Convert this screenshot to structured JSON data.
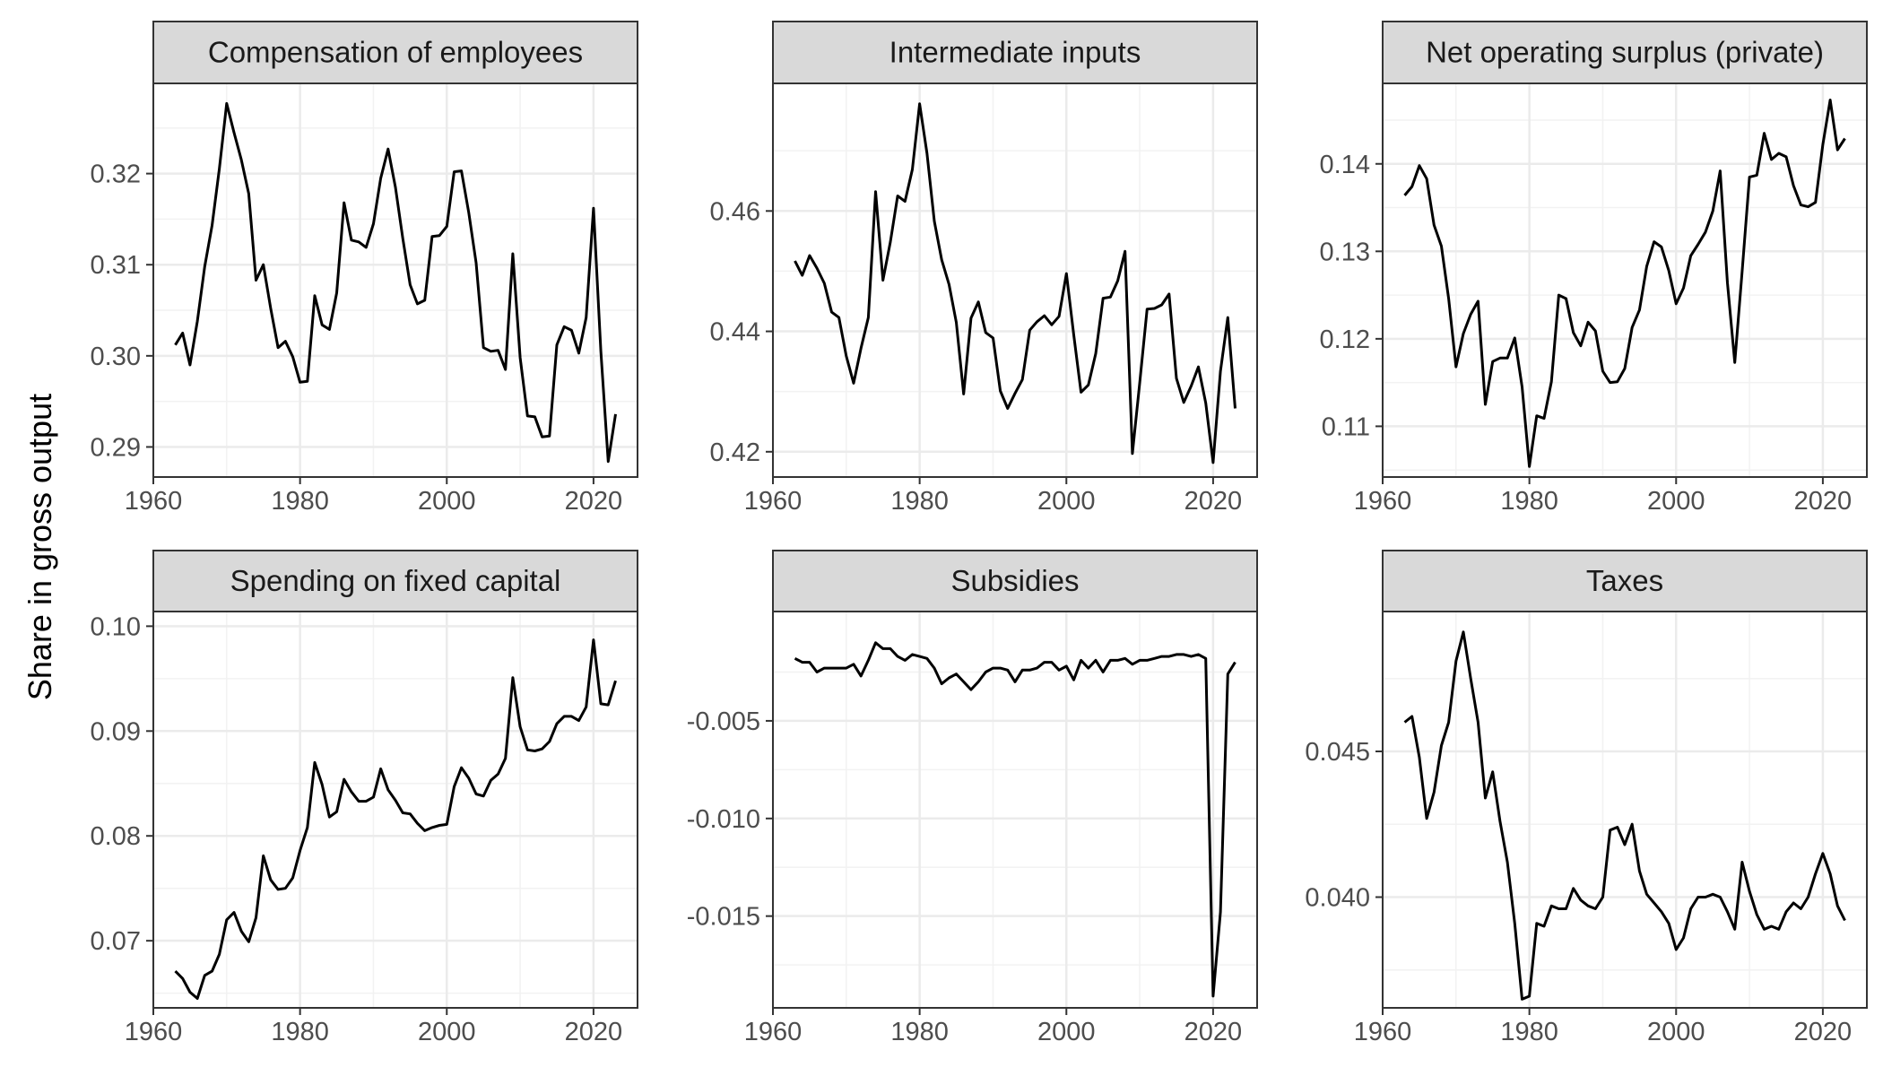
{
  "chart_data": {
    "type": "line",
    "ylabel": "Share in gross output",
    "xlabel": "",
    "grid": true,
    "line_color": "#000000",
    "strip_color": "#d9d9d9",
    "x": [
      1963,
      1964,
      1965,
      1966,
      1967,
      1968,
      1969,
      1970,
      1971,
      1972,
      1973,
      1974,
      1975,
      1976,
      1977,
      1978,
      1979,
      1980,
      1981,
      1982,
      1983,
      1984,
      1985,
      1986,
      1987,
      1988,
      1989,
      1990,
      1991,
      1992,
      1993,
      1994,
      1995,
      1996,
      1997,
      1998,
      1999,
      2000,
      2001,
      2002,
      2003,
      2004,
      2005,
      2006,
      2007,
      2008,
      2009,
      2010,
      2011,
      2012,
      2013,
      2014,
      2015,
      2016,
      2017,
      2018,
      2019,
      2020,
      2021,
      2022,
      2023
    ],
    "panels": [
      {
        "title": "Compensation of employees",
        "xlim": [
          1960,
          2026
        ],
        "ylim": [
          0.2867,
          0.3299
        ],
        "xticks": [
          "1960",
          "1980",
          "2000",
          "2020"
        ],
        "yticks": [
          "0.29",
          "0.30",
          "0.31",
          "0.32"
        ],
        "values": [
          0.3012,
          0.3025,
          0.299,
          0.3038,
          0.3098,
          0.3143,
          0.3205,
          0.3277,
          0.3245,
          0.3215,
          0.3178,
          0.3083,
          0.31,
          0.3052,
          0.3009,
          0.3016,
          0.2999,
          0.2971,
          0.2972,
          0.3066,
          0.3034,
          0.3029,
          0.3069,
          0.3168,
          0.3127,
          0.3125,
          0.3119,
          0.3145,
          0.3195,
          0.3227,
          0.3185,
          0.3129,
          0.3078,
          0.3057,
          0.3061,
          0.3131,
          0.3132,
          0.3142,
          0.3202,
          0.3203,
          0.3157,
          0.3102,
          0.3009,
          0.3005,
          0.3006,
          0.2985,
          0.3112,
          0.2998,
          0.2934,
          0.2933,
          0.2911,
          0.2912,
          0.3012,
          0.3032,
          0.3028,
          0.3003,
          0.3042,
          0.3162,
          0.3005,
          0.2884,
          0.2936
        ]
      },
      {
        "title": "Intermediate inputs",
        "xlim": [
          1960,
          2026
        ],
        "ylim": [
          0.4158,
          0.4812
        ],
        "xticks": [
          "1960",
          "1980",
          "2000",
          "2020"
        ],
        "yticks": [
          "0.42",
          "0.44",
          "0.46"
        ],
        "values": [
          0.4517,
          0.4493,
          0.4526,
          0.4505,
          0.448,
          0.4432,
          0.4423,
          0.4359,
          0.4314,
          0.4372,
          0.4423,
          0.4632,
          0.4485,
          0.4548,
          0.4625,
          0.4616,
          0.4669,
          0.4778,
          0.4696,
          0.4583,
          0.4519,
          0.4478,
          0.4415,
          0.4296,
          0.4422,
          0.4449,
          0.4398,
          0.4389,
          0.4301,
          0.4272,
          0.4297,
          0.432,
          0.4402,
          0.4416,
          0.4426,
          0.4411,
          0.4425,
          0.4496,
          0.4394,
          0.4299,
          0.4311,
          0.4363,
          0.4455,
          0.4457,
          0.4484,
          0.4533,
          0.4197,
          0.4315,
          0.4437,
          0.4438,
          0.4444,
          0.4462,
          0.4322,
          0.4282,
          0.4309,
          0.4341,
          0.4281,
          0.4182,
          0.4334,
          0.4423,
          0.4272
        ]
      },
      {
        "title": "Net operating surplus (private)",
        "xlim": [
          1960,
          2026
        ],
        "ylim": [
          0.1042,
          0.1492
        ],
        "xticks": [
          "1960",
          "1980",
          "2000",
          "2020"
        ],
        "yticks": [
          "0.11",
          "0.12",
          "0.13",
          "0.14"
        ],
        "values": [
          0.1364,
          0.1374,
          0.1398,
          0.1383,
          0.133,
          0.1306,
          0.1246,
          0.1168,
          0.1206,
          0.1228,
          0.1243,
          0.1125,
          0.1174,
          0.1178,
          0.1178,
          0.1201,
          0.1145,
          0.1054,
          0.1112,
          0.1109,
          0.1151,
          0.125,
          0.1246,
          0.1207,
          0.1192,
          0.1219,
          0.1209,
          0.1163,
          0.115,
          0.1151,
          0.1166,
          0.1213,
          0.1233,
          0.1283,
          0.1311,
          0.1305,
          0.1278,
          0.124,
          0.1258,
          0.1295,
          0.1308,
          0.1322,
          0.1346,
          0.1392,
          0.1264,
          0.1173,
          0.1277,
          0.1385,
          0.1387,
          0.1435,
          0.1405,
          0.1412,
          0.1408,
          0.1375,
          0.1353,
          0.1351,
          0.1356,
          0.1422,
          0.1473,
          0.1416,
          0.1429
        ]
      },
      {
        "title": "Spending on fixed capital",
        "xlim": [
          1960,
          2026
        ],
        "ylim": [
          0.0636,
          0.1014
        ],
        "xticks": [
          "1960",
          "1980",
          "2000",
          "2020"
        ],
        "yticks": [
          "0.07",
          "0.08",
          "0.09",
          "0.10"
        ],
        "values": [
          0.0671,
          0.0664,
          0.0651,
          0.0645,
          0.0667,
          0.0671,
          0.0687,
          0.072,
          0.0727,
          0.0709,
          0.0699,
          0.0722,
          0.0781,
          0.0758,
          0.0749,
          0.075,
          0.076,
          0.0786,
          0.0808,
          0.087,
          0.0849,
          0.0818,
          0.0823,
          0.0854,
          0.0842,
          0.0833,
          0.0833,
          0.0837,
          0.0864,
          0.0844,
          0.0834,
          0.0822,
          0.0821,
          0.0812,
          0.0805,
          0.0808,
          0.081,
          0.0811,
          0.0847,
          0.0865,
          0.0855,
          0.084,
          0.0838,
          0.0853,
          0.0859,
          0.0874,
          0.0951,
          0.0904,
          0.0882,
          0.0881,
          0.0883,
          0.089,
          0.0907,
          0.0914,
          0.0914,
          0.091,
          0.0923,
          0.0987,
          0.0926,
          0.0925,
          0.0948
        ]
      },
      {
        "title": "Subsidies",
        "xlim": [
          1960,
          2026
        ],
        "ylim": [
          -0.0197,
          0.0006
        ],
        "xticks": [
          "1960",
          "1980",
          "2000",
          "2020"
        ],
        "yticks": [
          "-0.015",
          "-0.010",
          "-0.005"
        ],
        "values": [
          -0.0018,
          -0.002,
          -0.002,
          -0.0025,
          -0.0023,
          -0.0023,
          -0.0023,
          -0.0023,
          -0.0021,
          -0.0027,
          -0.0019,
          -0.001,
          -0.0013,
          -0.0013,
          -0.0017,
          -0.0019,
          -0.0016,
          -0.0017,
          -0.0018,
          -0.0023,
          -0.0031,
          -0.0028,
          -0.0026,
          -0.003,
          -0.0034,
          -0.003,
          -0.0025,
          -0.0023,
          -0.0023,
          -0.0024,
          -0.003,
          -0.0024,
          -0.0024,
          -0.0023,
          -0.002,
          -0.002,
          -0.0024,
          -0.0022,
          -0.0029,
          -0.0019,
          -0.0023,
          -0.0019,
          -0.0025,
          -0.0019,
          -0.0019,
          -0.0018,
          -0.0021,
          -0.0019,
          -0.0019,
          -0.0018,
          -0.0017,
          -0.0017,
          -0.0016,
          -0.0016,
          -0.0017,
          -0.0016,
          -0.0018,
          -0.0191,
          -0.0148,
          -0.0026,
          -0.002
        ]
      },
      {
        "title": "Taxes",
        "xlim": [
          1960,
          2026
        ],
        "ylim": [
          0.0362,
          0.0498
        ],
        "xticks": [
          "1960",
          "1980",
          "2000",
          "2020"
        ],
        "yticks": [
          "0.040",
          "0.045"
        ],
        "values": [
          0.046,
          0.0462,
          0.0448,
          0.0427,
          0.0436,
          0.0452,
          0.046,
          0.0481,
          0.0491,
          0.0475,
          0.046,
          0.0434,
          0.0443,
          0.0426,
          0.0412,
          0.0391,
          0.0365,
          0.0366,
          0.0391,
          0.039,
          0.0397,
          0.0396,
          0.0396,
          0.0403,
          0.0399,
          0.0397,
          0.0396,
          0.04,
          0.0423,
          0.0424,
          0.0418,
          0.0425,
          0.0409,
          0.0401,
          0.0398,
          0.0395,
          0.0391,
          0.0382,
          0.0386,
          0.0396,
          0.04,
          0.04,
          0.0401,
          0.04,
          0.0395,
          0.0389,
          0.0412,
          0.0402,
          0.0394,
          0.0389,
          0.039,
          0.0389,
          0.0395,
          0.0398,
          0.0396,
          0.04,
          0.0408,
          0.0415,
          0.0408,
          0.0397,
          0.0392
        ]
      }
    ]
  }
}
